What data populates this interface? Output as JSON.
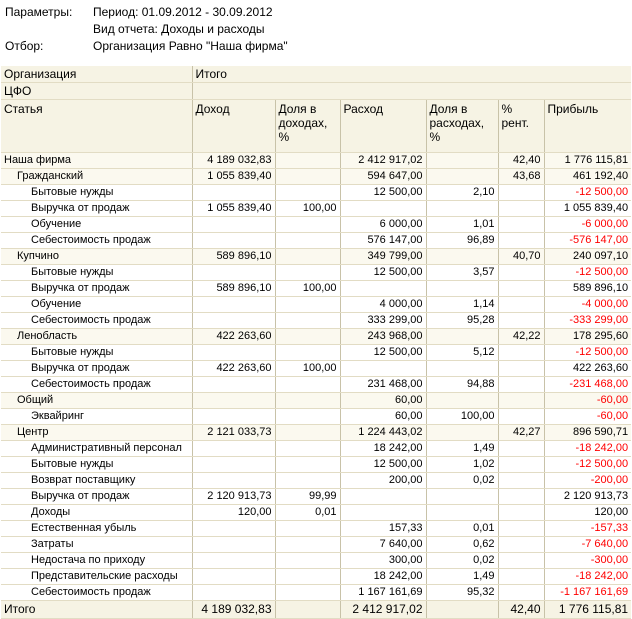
{
  "params": {
    "params_label": "Параметры:",
    "period": "Период: 01.09.2012 - 30.09.2012",
    "report_type": "Вид отчета: Доходы и расходы",
    "filter_label": "Отбор:",
    "filter_value": "Организация Равно \"Наша фирма\""
  },
  "header": {
    "org": "Организация",
    "itogo": "Итого",
    "cfo": "ЦФО",
    "article": "Статья",
    "income": "Доход",
    "income_share": "Доля в доходах, %",
    "expense": "Расход",
    "expense_share": "Доля в расходах, %",
    "rent": "% рент.",
    "profit": "Прибыль"
  },
  "rows": [
    {
      "level": 0,
      "name": "Наша фирма",
      "income": "4 189 032,83",
      "income_share": "",
      "expense": "2 412 917,02",
      "expense_share": "",
      "rent": "42,40",
      "profit": "1 776 115,81",
      "neg": false
    },
    {
      "level": 1,
      "name": "Гражданский",
      "income": "1 055 839,40",
      "income_share": "",
      "expense": "594 647,00",
      "expense_share": "",
      "rent": "43,68",
      "profit": "461 192,40",
      "neg": false
    },
    {
      "level": 2,
      "name": "Бытовые нужды",
      "income": "",
      "income_share": "",
      "expense": "12 500,00",
      "expense_share": "2,10",
      "rent": "",
      "profit": "-12 500,00",
      "neg": true
    },
    {
      "level": 2,
      "name": "Выручка от продаж",
      "income": "1 055 839,40",
      "income_share": "100,00",
      "expense": "",
      "expense_share": "",
      "rent": "",
      "profit": "1 055 839,40",
      "neg": false
    },
    {
      "level": 2,
      "name": "Обучение",
      "income": "",
      "income_share": "",
      "expense": "6 000,00",
      "expense_share": "1,01",
      "rent": "",
      "profit": "-6 000,00",
      "neg": true
    },
    {
      "level": 2,
      "name": "Себестоимость продаж",
      "income": "",
      "income_share": "",
      "expense": "576 147,00",
      "expense_share": "96,89",
      "rent": "",
      "profit": "-576 147,00",
      "neg": true
    },
    {
      "level": 1,
      "name": "Купчино",
      "income": "589 896,10",
      "income_share": "",
      "expense": "349 799,00",
      "expense_share": "",
      "rent": "40,70",
      "profit": "240 097,10",
      "neg": false
    },
    {
      "level": 2,
      "name": "Бытовые нужды",
      "income": "",
      "income_share": "",
      "expense": "12 500,00",
      "expense_share": "3,57",
      "rent": "",
      "profit": "-12 500,00",
      "neg": true
    },
    {
      "level": 2,
      "name": "Выручка от продаж",
      "income": "589 896,10",
      "income_share": "100,00",
      "expense": "",
      "expense_share": "",
      "rent": "",
      "profit": "589 896,10",
      "neg": false
    },
    {
      "level": 2,
      "name": "Обучение",
      "income": "",
      "income_share": "",
      "expense": "4 000,00",
      "expense_share": "1,14",
      "rent": "",
      "profit": "-4 000,00",
      "neg": true
    },
    {
      "level": 2,
      "name": "Себестоимость продаж",
      "income": "",
      "income_share": "",
      "expense": "333 299,00",
      "expense_share": "95,28",
      "rent": "",
      "profit": "-333 299,00",
      "neg": true
    },
    {
      "level": 1,
      "name": "Ленобласть",
      "income": "422 263,60",
      "income_share": "",
      "expense": "243 968,00",
      "expense_share": "",
      "rent": "42,22",
      "profit": "178 295,60",
      "neg": false
    },
    {
      "level": 2,
      "name": "Бытовые нужды",
      "income": "",
      "income_share": "",
      "expense": "12 500,00",
      "expense_share": "5,12",
      "rent": "",
      "profit": "-12 500,00",
      "neg": true
    },
    {
      "level": 2,
      "name": "Выручка от продаж",
      "income": "422 263,60",
      "income_share": "100,00",
      "expense": "",
      "expense_share": "",
      "rent": "",
      "profit": "422 263,60",
      "neg": false
    },
    {
      "level": 2,
      "name": "Себестоимость продаж",
      "income": "",
      "income_share": "",
      "expense": "231 468,00",
      "expense_share": "94,88",
      "rent": "",
      "profit": "-231 468,00",
      "neg": true
    },
    {
      "level": 1,
      "name": "Общий",
      "income": "",
      "income_share": "",
      "expense": "60,00",
      "expense_share": "",
      "rent": "",
      "profit": "-60,00",
      "neg": true
    },
    {
      "level": 2,
      "name": "Эквайринг",
      "income": "",
      "income_share": "",
      "expense": "60,00",
      "expense_share": "100,00",
      "rent": "",
      "profit": "-60,00",
      "neg": true
    },
    {
      "level": 1,
      "name": "Центр",
      "income": "2 121 033,73",
      "income_share": "",
      "expense": "1 224 443,02",
      "expense_share": "",
      "rent": "42,27",
      "profit": "896 590,71",
      "neg": false
    },
    {
      "level": 2,
      "name": "Административный персонал",
      "income": "",
      "income_share": "",
      "expense": "18 242,00",
      "expense_share": "1,49",
      "rent": "",
      "profit": "-18 242,00",
      "neg": true
    },
    {
      "level": 2,
      "name": "Бытовые нужды",
      "income": "",
      "income_share": "",
      "expense": "12 500,00",
      "expense_share": "1,02",
      "rent": "",
      "profit": "-12 500,00",
      "neg": true
    },
    {
      "level": 2,
      "name": "Возврат поставщику",
      "income": "",
      "income_share": "",
      "expense": "200,00",
      "expense_share": "0,02",
      "rent": "",
      "profit": "-200,00",
      "neg": true
    },
    {
      "level": 2,
      "name": "Выручка от продаж",
      "income": "2 120 913,73",
      "income_share": "99,99",
      "expense": "",
      "expense_share": "",
      "rent": "",
      "profit": "2 120 913,73",
      "neg": false
    },
    {
      "level": 2,
      "name": "Доходы",
      "income": "120,00",
      "income_share": "0,01",
      "expense": "",
      "expense_share": "",
      "rent": "",
      "profit": "120,00",
      "neg": false
    },
    {
      "level": 2,
      "name": "Естественная убыль",
      "income": "",
      "income_share": "",
      "expense": "157,33",
      "expense_share": "0,01",
      "rent": "",
      "profit": "-157,33",
      "neg": true
    },
    {
      "level": 2,
      "name": "Затраты",
      "income": "",
      "income_share": "",
      "expense": "7 640,00",
      "expense_share": "0,62",
      "rent": "",
      "profit": "-7 640,00",
      "neg": true
    },
    {
      "level": 2,
      "name": "Недостача по приходу",
      "income": "",
      "income_share": "",
      "expense": "300,00",
      "expense_share": "0,02",
      "rent": "",
      "profit": "-300,00",
      "neg": true
    },
    {
      "level": 2,
      "name": "Представительские расходы",
      "income": "",
      "income_share": "",
      "expense": "18 242,00",
      "expense_share": "1,49",
      "rent": "",
      "profit": "-18 242,00",
      "neg": true
    },
    {
      "level": 2,
      "name": "Себестоимость продаж",
      "income": "",
      "income_share": "",
      "expense": "1 167 161,69",
      "expense_share": "95,32",
      "rent": "",
      "profit": "-1 167 161,69",
      "neg": true
    }
  ],
  "total": {
    "name": "Итого",
    "income": "4 189 032,83",
    "expense": "2 412 917,02",
    "rent": "42,40",
    "profit": "1 776 115,81"
  }
}
